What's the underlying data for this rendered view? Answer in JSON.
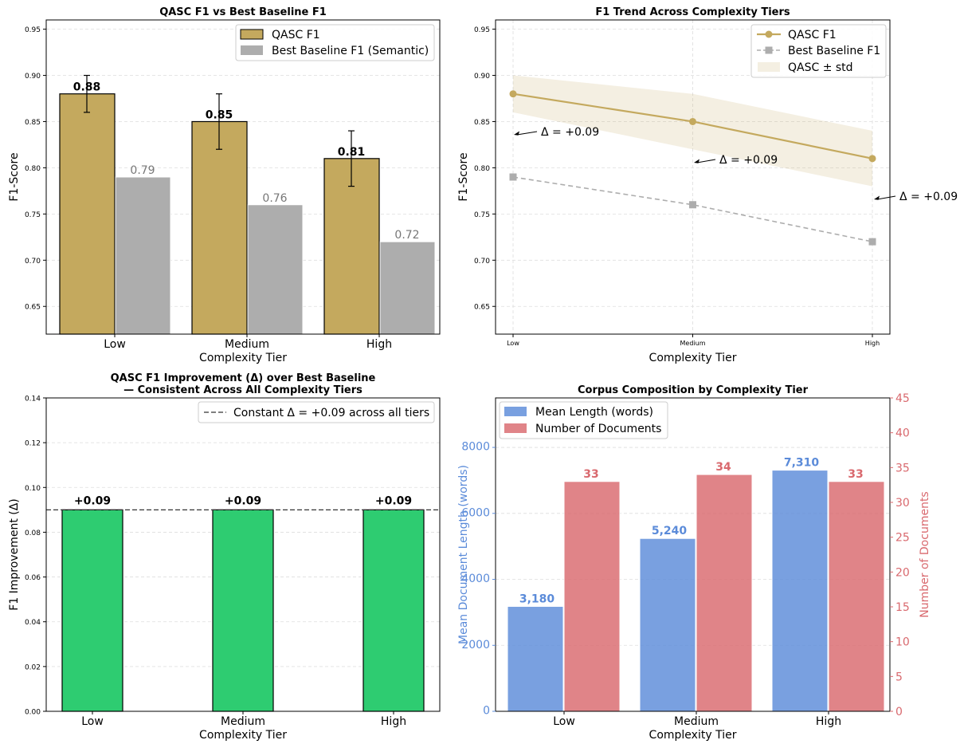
{
  "figure": {
    "width": 1210,
    "height": 933
  },
  "colors": {
    "qasc": "#C4A95E",
    "baseline": "#ADADAD",
    "delta": "#2ECC71",
    "mean_length": "#5B8BD9",
    "num_docs": "#D9696E",
    "grid": "#DDDDDD"
  },
  "chart_data": [
    {
      "id": "p1",
      "type": "bar",
      "title": "QASC F1 vs Best Baseline F1",
      "xlabel": "Complexity Tier",
      "ylabel": "F1-Score",
      "categories": [
        "Low",
        "Medium",
        "High"
      ],
      "ylim": [
        0.62,
        0.96
      ],
      "yticks": [
        0.65,
        0.7,
        0.75,
        0.8,
        0.85,
        0.9,
        0.95
      ],
      "ytick_labels": [
        "0.65",
        "0.70",
        "0.75",
        "0.80",
        "0.85",
        "0.90",
        "0.95"
      ],
      "grid": true,
      "legend_position": "top-right",
      "series": [
        {
          "name": "QASC F1",
          "values": [
            0.88,
            0.85,
            0.81
          ],
          "errors": [
            0.02,
            0.03,
            0.03
          ],
          "labels": [
            "0.88",
            "0.85",
            "0.81"
          ]
        },
        {
          "name": "Best Baseline F1 (Semantic)",
          "values": [
            0.79,
            0.76,
            0.72
          ],
          "labels": [
            "0.79",
            "0.76",
            "0.72"
          ]
        }
      ]
    },
    {
      "id": "p2",
      "type": "line",
      "title": "F1 Trend Across Complexity Tiers",
      "xlabel": "Complexity Tier",
      "ylabel": "F1-Score",
      "categories": [
        "Low",
        "Medium",
        "High"
      ],
      "ylim": [
        0.62,
        0.96
      ],
      "yticks": [
        0.65,
        0.7,
        0.75,
        0.8,
        0.85,
        0.9,
        0.95
      ],
      "ytick_labels": [
        "0.65",
        "0.70",
        "0.75",
        "0.80",
        "0.85",
        "0.90",
        "0.95"
      ],
      "grid": true,
      "legend_position": "top-right",
      "series": [
        {
          "name": "QASC F1",
          "values": [
            0.88,
            0.85,
            0.81
          ]
        },
        {
          "name": "Best Baseline F1",
          "values": [
            0.79,
            0.76,
            0.72
          ]
        }
      ],
      "band": {
        "name": "QASC ± std",
        "lower": [
          0.86,
          0.82,
          0.78
        ],
        "upper": [
          0.9,
          0.88,
          0.84
        ]
      },
      "annotations": [
        "Δ = +0.09",
        "Δ = +0.09",
        "Δ = +0.09"
      ]
    },
    {
      "id": "p3",
      "type": "bar",
      "title": "QASC F1 Improvement (Δ) over Best Baseline",
      "subtitle": "— Consistent Across All Complexity Tiers",
      "xlabel": "Complexity Tier",
      "ylabel": "F1 Improvement (Δ)",
      "categories": [
        "Low",
        "Medium",
        "High"
      ],
      "values": [
        0.09,
        0.09,
        0.09
      ],
      "labels": [
        "+0.09",
        "+0.09",
        "+0.09"
      ],
      "ylim": [
        0.0,
        0.14
      ],
      "yticks": [
        0.0,
        0.02,
        0.04,
        0.06,
        0.08,
        0.1,
        0.12,
        0.14
      ],
      "ytick_labels": [
        "0.00",
        "0.02",
        "0.04",
        "0.06",
        "0.08",
        "0.10",
        "0.12",
        "0.14"
      ],
      "reference_line": {
        "value": 0.09,
        "label": "Constant Δ = +0.09 across all tiers"
      },
      "grid": true,
      "legend_position": "top-right"
    },
    {
      "id": "p4",
      "type": "bar",
      "title": "Corpus Composition by Complexity Tier",
      "xlabel": "Complexity Tier",
      "ylabel": "Mean Document Length (words)",
      "ylabel_right": "Number of Documents",
      "categories": [
        "Low",
        "Medium",
        "High"
      ],
      "ylim": [
        0,
        9500
      ],
      "ylim_right": [
        0,
        45
      ],
      "yticks": [
        0,
        2000,
        4000,
        6000,
        8000
      ],
      "ytick_labels": [
        "0",
        "2000",
        "4000",
        "6000",
        "8000"
      ],
      "yticks_right": [
        0,
        5,
        10,
        15,
        20,
        25,
        30,
        35,
        40,
        45
      ],
      "ytick_labels_right": [
        "0",
        "5",
        "10",
        "15",
        "20",
        "25",
        "30",
        "35",
        "40",
        "45"
      ],
      "grid": true,
      "legend_position": "top-left",
      "series": [
        {
          "name": "Mean Length (words)",
          "axis": "left",
          "values": [
            3180,
            5240,
            7310
          ],
          "labels": [
            "3,180",
            "5,240",
            "7,310"
          ]
        },
        {
          "name": "Number of Documents",
          "axis": "right",
          "values": [
            33,
            34,
            33
          ],
          "labels": [
            "33",
            "34",
            "33"
          ]
        }
      ]
    }
  ]
}
